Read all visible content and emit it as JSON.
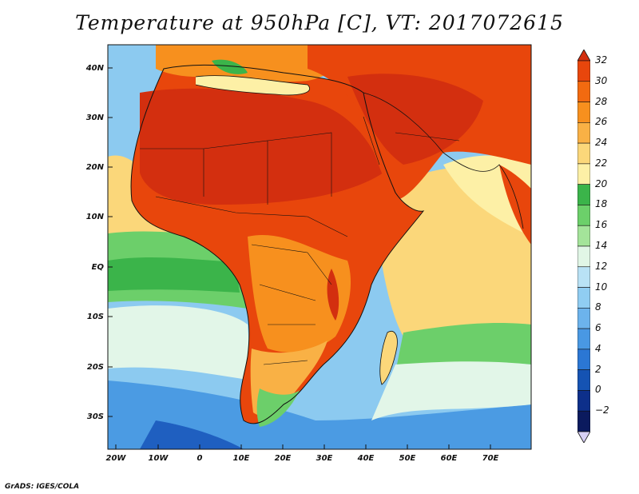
{
  "title": "Temperature at 950hPa [C], VT: 2017072615",
  "credit": "GrADS: IGES/COLA",
  "map": {
    "lat_labels": [
      "40N",
      "30N",
      "20N",
      "10N",
      "EQ",
      "10S",
      "20S",
      "30S"
    ],
    "lon_labels": [
      "20W",
      "10W",
      "0",
      "10E",
      "20E",
      "30E",
      "40E",
      "50E",
      "60E",
      "70E"
    ],
    "land_mask_value_labels": []
  },
  "colorbar": {
    "labels": [
      "32",
      "30",
      "28",
      "26",
      "24",
      "22",
      "20",
      "18",
      "16",
      "14",
      "12",
      "10",
      "8",
      "6",
      "4",
      "2",
      "0",
      "−2"
    ],
    "colors": [
      "#d32f0f",
      "#e8460c",
      "#f26a10",
      "#f7901e",
      "#f9b145",
      "#fbd77a",
      "#fdf0a6",
      "#3bb44a",
      "#6cd06a",
      "#a4e49a",
      "#e1f6e6",
      "#b9e2f5",
      "#90cdf2",
      "#6cb3ec",
      "#4998e3",
      "#2b77d4",
      "#1553b3",
      "#0d2f8a",
      "#0b1a5e"
    ],
    "under_color": "#d7d0f5"
  }
}
